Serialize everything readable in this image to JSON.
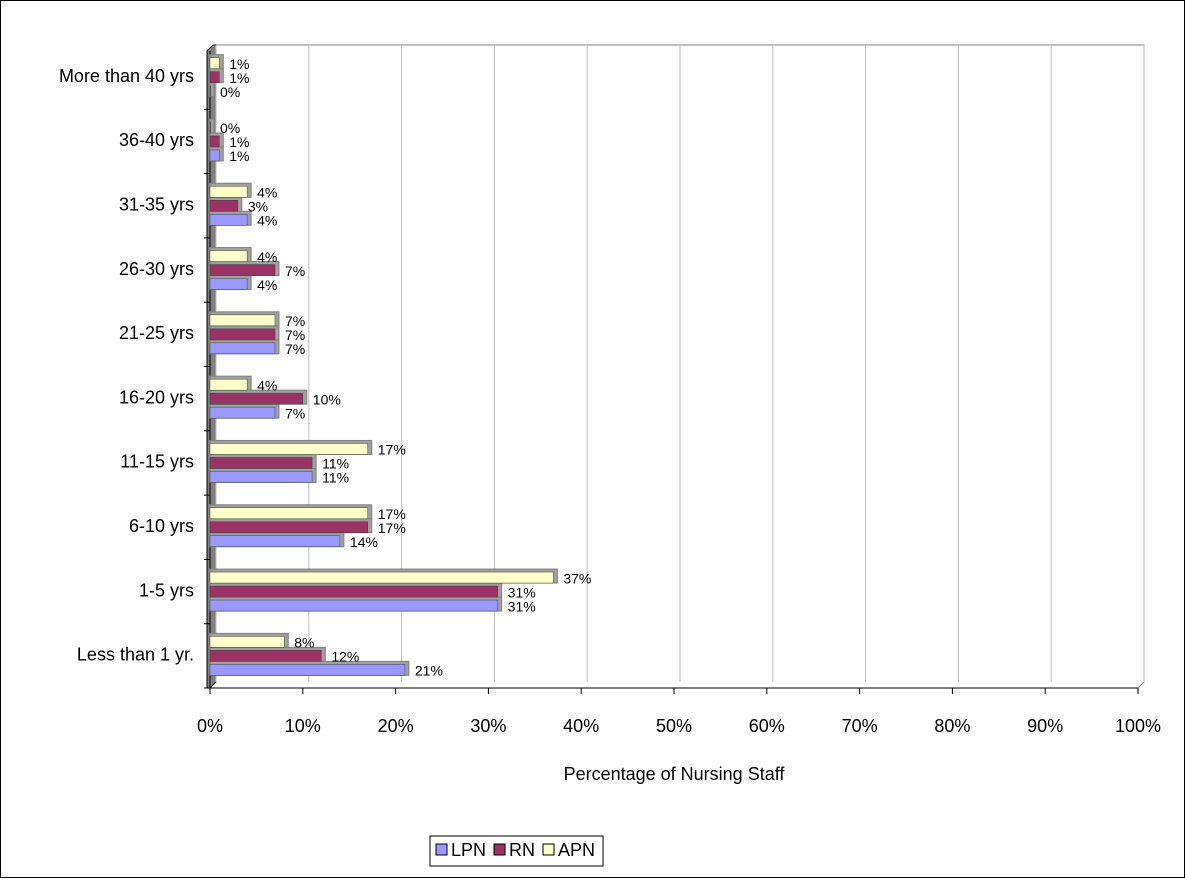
{
  "chart_data": {
    "type": "bar",
    "orientation": "horizontal",
    "x_label": "Percentage of Nursing Staff",
    "categories": [
      "Less than 1 yr.",
      "1-5 yrs",
      "6-10 yrs",
      "11-15 yrs",
      "16-20 yrs",
      "21-25 yrs",
      "26-30 yrs",
      "31-35 yrs",
      "36-40 yrs",
      "More than 40 yrs"
    ],
    "series": [
      {
        "name": "LPN",
        "color": "#9999ff",
        "values": [
          21,
          31,
          14,
          11,
          7,
          7,
          4,
          4,
          1,
          0
        ],
        "value_labels": [
          "21%",
          "31%",
          "14%",
          "11%",
          "7%",
          "7%",
          "4%",
          "4%",
          "1%",
          "0%"
        ]
      },
      {
        "name": "RN",
        "color": "#993366",
        "values": [
          12,
          31,
          17,
          11,
          10,
          7,
          7,
          3,
          1,
          1
        ],
        "value_labels": [
          "12%",
          "31%",
          "17%",
          "11%",
          "10%",
          "7%",
          "7%",
          "3%",
          "1%",
          "1%"
        ]
      },
      {
        "name": "APN",
        "color": "#ffffcc",
        "values": [
          8,
          37,
          17,
          17,
          4,
          7,
          4,
          4,
          0,
          1
        ],
        "value_labels": [
          "8%",
          "37%",
          "17%",
          "17%",
          "4%",
          "7%",
          "4%",
          "4%",
          "0%",
          "1%"
        ]
      }
    ],
    "xlim": [
      0,
      100
    ],
    "xticks": [
      {
        "value": 0,
        "label": "0%"
      },
      {
        "value": 10,
        "label": "10%"
      },
      {
        "value": 20,
        "label": "20%"
      },
      {
        "value": 30,
        "label": "30%"
      },
      {
        "value": 40,
        "label": "40%"
      },
      {
        "value": 50,
        "label": "50%"
      },
      {
        "value": 60,
        "label": "60%"
      },
      {
        "value": 70,
        "label": "70%"
      },
      {
        "value": 80,
        "label": "80%"
      },
      {
        "value": 90,
        "label": "90%"
      },
      {
        "value": 100,
        "label": "100%"
      }
    ],
    "grid": true,
    "legend": "bottom"
  }
}
